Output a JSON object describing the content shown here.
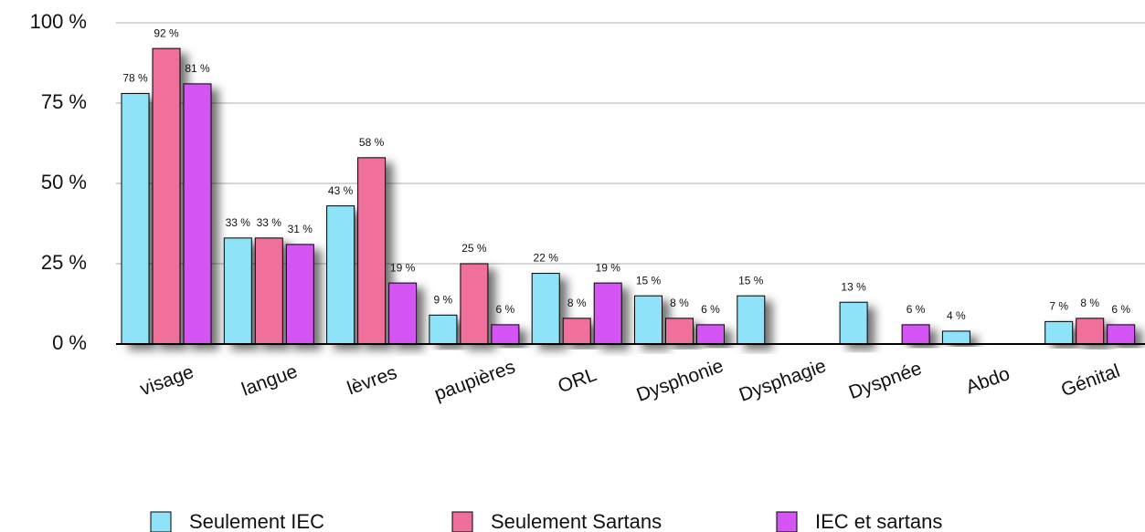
{
  "chart_data": {
    "type": "bar",
    "categories": [
      "visage",
      "langue",
      "lèvres",
      "paupières",
      "ORL",
      "Dysphonie",
      "Dysphagie",
      "Dyspnée",
      "Abdo",
      "Génital"
    ],
    "series": [
      {
        "name": "Seulement IEC",
        "color": "#8fe3f8",
        "values": [
          78,
          33,
          43,
          9,
          22,
          15,
          15,
          13,
          4,
          7
        ],
        "value_labels": [
          "78 %",
          "33 %",
          "43 %",
          "9 %",
          "22 %",
          "15 %",
          "15 %",
          "13 %",
          "4 %",
          "7 %"
        ]
      },
      {
        "name": "Seulement Sartans",
        "color": "#ee6f9b",
        "values": [
          92,
          33,
          58,
          25,
          8,
          8,
          null,
          null,
          null,
          8
        ],
        "value_labels": [
          "92 %",
          "33 %",
          "58 %",
          "25 %",
          "8 %",
          "8 %",
          null,
          null,
          null,
          "8 %"
        ]
      },
      {
        "name": "IEC et sartans",
        "color": "#d455f4",
        "values": [
          81,
          31,
          19,
          6,
          19,
          6,
          null,
          6,
          null,
          6
        ],
        "value_labels": [
          "81 %",
          "31 %",
          "19 %",
          "6 %",
          "19 %",
          "6 %",
          null,
          "6 %",
          null,
          "6 %"
        ]
      }
    ],
    "ylim": [
      0,
      100
    ],
    "yticks": [
      {
        "value": 0,
        "label": "0 %"
      },
      {
        "value": 25,
        "label": "25 %"
      },
      {
        "value": 50,
        "label": "50 %"
      },
      {
        "value": 75,
        "label": "75 %"
      },
      {
        "value": 100,
        "label": "100 %"
      }
    ],
    "grid": true,
    "legend": "bottom"
  }
}
